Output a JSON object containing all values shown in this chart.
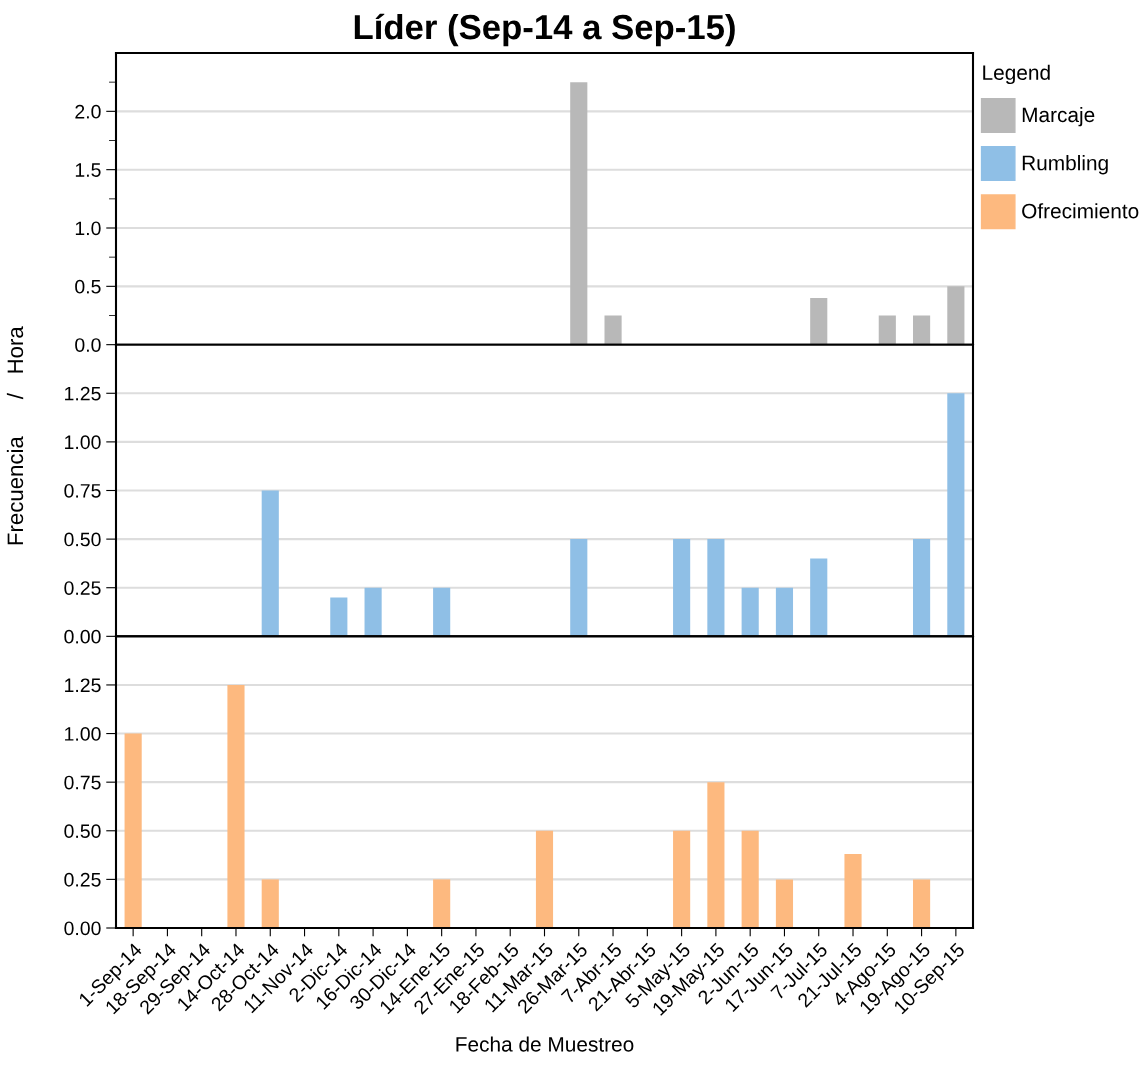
{
  "chart_data": [
    {
      "type": "bar",
      "title": "Líder (Sep-14 a Sep-15)",
      "legend_title": "Legend",
      "legend": "right",
      "grid": "y",
      "tick_labels": "y",
      "categories": [
        null,
        null,
        null,
        null,
        null,
        null,
        null,
        null,
        null,
        null,
        null,
        null,
        null,
        null,
        null,
        null,
        null,
        null,
        null,
        null,
        null,
        null,
        null,
        null,
        null
      ],
      "series": [
        {
          "name": "Marcaje",
          "color": "#b8b8b8",
          "values": [
            0,
            0,
            0,
            0,
            0,
            0,
            0,
            0,
            0,
            0,
            0,
            0,
            0,
            2.25,
            0.25,
            0,
            0,
            0,
            0,
            0,
            0.4,
            0,
            0.25,
            0.25,
            0.5
          ]
        }
      ],
      "ylim": [
        0,
        2.5
      ],
      "yticks": [
        {
          "value": 0,
          "label": "0.0"
        },
        {
          "value": 0.25,
          "label": null
        },
        {
          "value": 0.5,
          "label": "0.5"
        },
        {
          "value": 0.75,
          "label": null
        },
        {
          "value": 1,
          "label": "1.0"
        },
        {
          "value": 1.25,
          "label": null
        },
        {
          "value": 1.5,
          "label": "1.5"
        },
        {
          "value": 1.75,
          "label": null
        },
        {
          "value": 2,
          "label": "2.0"
        },
        {
          "value": 2.25,
          "label": null
        }
      ]
    },
    {
      "type": "bar",
      "ylabel": "Frecuencia      /   Hora",
      "legend": "right",
      "grid": "y",
      "tick_labels": "y",
      "categories": [
        null,
        null,
        null,
        null,
        null,
        null,
        null,
        null,
        null,
        null,
        null,
        null,
        null,
        null,
        null,
        null,
        null,
        null,
        null,
        null,
        null,
        null,
        null,
        null,
        null
      ],
      "series": [
        {
          "name": "Rumbling",
          "color": "#8fbfe6",
          "values": [
            0,
            0,
            0,
            0,
            0.75,
            0,
            0.2,
            0.25,
            0,
            0.25,
            0,
            0,
            0,
            0.5,
            0,
            0,
            0.5,
            0.5,
            0.25,
            0.25,
            0.4,
            0,
            0,
            0.5,
            1.25
          ]
        }
      ],
      "ylim": [
        0,
        1.5
      ],
      "yticks": [
        {
          "value": 0,
          "label": "0.00"
        },
        {
          "value": 0.25,
          "label": "0.25"
        },
        {
          "value": 0.5,
          "label": "0.50"
        },
        {
          "value": 0.75,
          "label": "0.75"
        },
        {
          "value": 1,
          "label": "1.00"
        },
        {
          "value": 1.25,
          "label": "1.25"
        }
      ]
    },
    {
      "type": "bar",
      "xlabel": "Fecha de Muestreo",
      "legend": "right",
      "grid": "y",
      "categories": [
        "1-Sep-14",
        "18-Sep-14",
        "29-Sep-14",
        "14-Oct-14",
        "28-Oct-14",
        "11-Nov-14",
        "2-Dic-14",
        "16-Dic-14",
        "30-Dic-14",
        "14-Ene-15",
        "27-Ene-15",
        "18-Feb-15",
        "11-Mar-15",
        "26-Mar-15",
        "7-Abr-15",
        "21-Abr-15",
        "5-May-15",
        "19-May-15",
        "2-Jun-15",
        "17-Jun-15",
        "7-Jul-15",
        "21-Jul-15",
        "4-Ago-15",
        "19-Ago-15",
        "10-Sep-15"
      ],
      "series": [
        {
          "name": "Ofrecimiento",
          "color": "#fdb97f",
          "values": [
            1.0,
            0,
            0,
            1.25,
            0.25,
            0,
            0,
            0,
            0,
            0.25,
            0,
            0,
            0.5,
            0,
            0,
            0,
            0.5,
            0.75,
            0.5,
            0.25,
            0,
            0.38,
            0,
            0.25,
            0
          ]
        }
      ],
      "ylim": [
        0,
        1.5
      ],
      "yticks": [
        {
          "value": 0,
          "label": "0.00"
        },
        {
          "value": 0.25,
          "label": "0.25"
        },
        {
          "value": 0.5,
          "label": "0.50"
        },
        {
          "value": 0.75,
          "label": "0.75"
        },
        {
          "value": 1,
          "label": "1.00"
        },
        {
          "value": 1.25,
          "label": "1.25"
        }
      ]
    }
  ]
}
